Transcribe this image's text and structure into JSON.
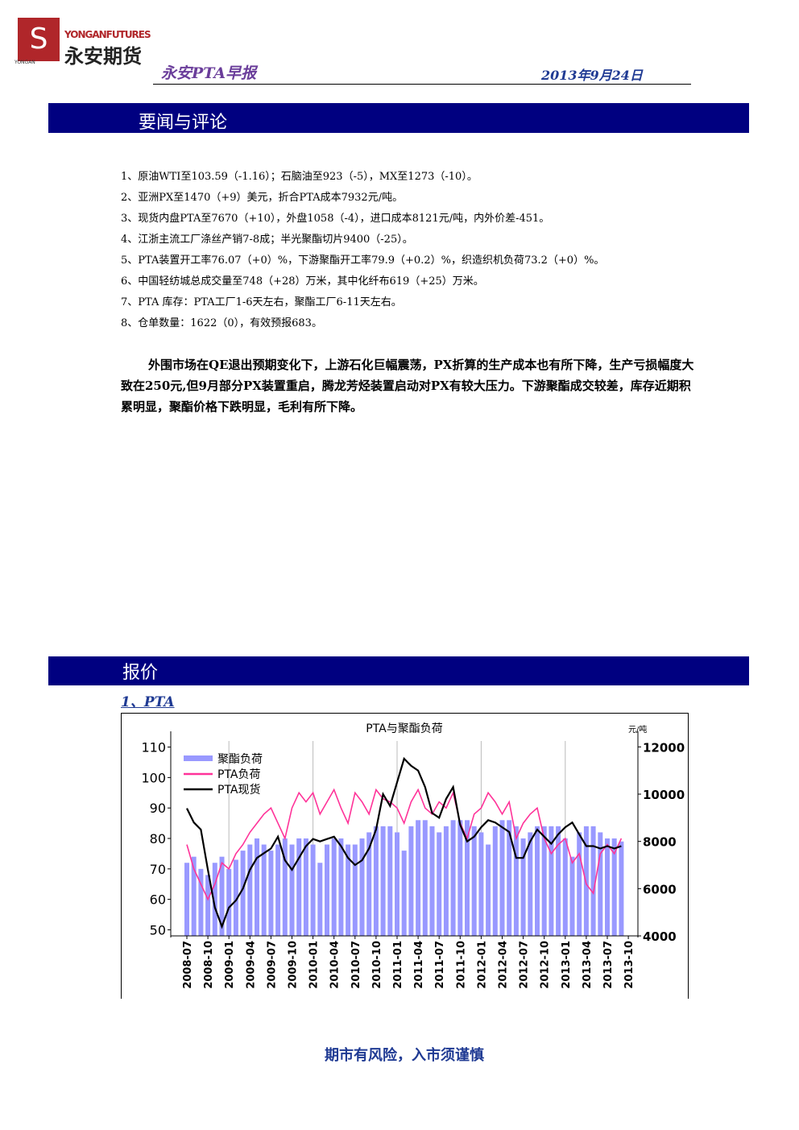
{
  "header": {
    "logo_side": "YONGAN",
    "logo_en": "YONGANFUTURES",
    "logo_cn": "永安期货",
    "report_title": "永安PTA早报",
    "date": "2013年9月24日"
  },
  "sections": [
    {
      "title": "要闻与评论",
      "items": [
        "1、原油WTI至103.59（-1.16）；石脑油至923（-5），MX至1273（-10）。",
        "2、亚洲PX至1470（+9）美元，折合PTA成本7932元/吨。",
        "3、现货内盘PTA至7670（+10），外盘1058（-4），进口成本8121元/吨，内外价差-451。",
        "4、江浙主流工厂涤丝产销7-8成；半光聚酯切片9400（-25）。",
        "5、PTA装置开工率76.07（+0）%，下游聚酯开工率79.9（+0.2）%，织造织机负荷73.2（+0）%。",
        "6、中国轻纺城总成交量至748（+28）万米，其中化纤布619（+25）万米。",
        "7、PTA 库存：PTA工厂1-6天左右，聚酯工厂6-11天左右。",
        "8、仓单数量：1622（0），有效预报683。"
      ],
      "paragraph": "外围市场在QE退出预期变化下，上游石化巨幅震荡，PX折算的生产成本也有所下降，生产亏损幅度大致在250元,但9月部分PX装置重启，腾龙芳烃装置启动对PX有较大压力。下游聚酯成交较差，库存近期积累明显，聚酯价格下跌明显，毛利有所下降。"
    },
    {
      "title": "报价",
      "subtitle": "1、PTA"
    }
  ],
  "chart_data": {
    "type": "combo",
    "title": "PTA与聚酯负荷",
    "y2_label": "元/吨",
    "x": [
      "2008-07",
      "2008-08",
      "2008-09",
      "2008-10",
      "2008-11",
      "2008-12",
      "2009-01",
      "2009-02",
      "2009-03",
      "2009-04",
      "2009-05",
      "2009-06",
      "2009-07",
      "2009-08",
      "2009-09",
      "2009-10",
      "2009-11",
      "2009-12",
      "2010-01",
      "2010-02",
      "2010-03",
      "2010-04",
      "2010-05",
      "2010-06",
      "2010-07",
      "2010-08",
      "2010-09",
      "2010-10",
      "2010-11",
      "2010-12",
      "2011-01",
      "2011-02",
      "2011-03",
      "2011-04",
      "2011-05",
      "2011-06",
      "2011-07",
      "2011-08",
      "2011-09",
      "2011-10",
      "2011-11",
      "2011-12",
      "2012-01",
      "2012-02",
      "2012-03",
      "2012-04",
      "2012-05",
      "2012-06",
      "2012-07",
      "2012-08",
      "2012-09",
      "2012-10",
      "2012-11",
      "2012-12",
      "2013-01",
      "2013-02",
      "2013-03",
      "2013-04",
      "2013-05",
      "2013-06",
      "2013-07",
      "2013-08",
      "2013-09"
    ],
    "xticks": [
      "2008-07",
      "2008-10",
      "2009-01",
      "2009-04",
      "2009-07",
      "2009-10",
      "2010-01",
      "2010-04",
      "2010-07",
      "2010-10",
      "2011-01",
      "2011-04",
      "2011-07",
      "2011-10",
      "2012-01",
      "2012-04",
      "2012-07",
      "2012-10",
      "2013-01",
      "2013-04",
      "2013-07",
      "2013-10"
    ],
    "ylim": [
      48,
      112
    ],
    "yticks": [
      50,
      60,
      70,
      80,
      90,
      100,
      110
    ],
    "y2lim": [
      4000,
      12250
    ],
    "y2ticks": [
      4000,
      6000,
      8000,
      10000,
      12000
    ],
    "series": [
      {
        "name": "聚酯负荷",
        "type": "bar",
        "color": "#9999ff",
        "values": [
          72,
          74,
          70,
          68,
          72,
          74,
          70,
          73,
          76,
          78,
          80,
          78,
          76,
          78,
          80,
          78,
          80,
          80,
          78,
          72,
          78,
          80,
          80,
          78,
          78,
          80,
          82,
          84,
          84,
          84,
          82,
          76,
          84,
          86,
          86,
          84,
          82,
          84,
          86,
          86,
          86,
          84,
          82,
          78,
          84,
          86,
          86,
          84,
          80,
          82,
          84,
          84,
          84,
          84,
          80,
          74,
          82,
          84,
          84,
          82,
          80,
          80,
          79
        ]
      },
      {
        "name": "PTA负荷",
        "type": "line",
        "color": "#ff3399",
        "values": [
          78,
          70,
          65,
          60,
          65,
          72,
          70,
          75,
          78,
          82,
          85,
          88,
          90,
          85,
          80,
          90,
          95,
          92,
          95,
          88,
          92,
          96,
          90,
          85,
          95,
          92,
          88,
          96,
          93,
          92,
          90,
          85,
          92,
          96,
          90,
          88,
          92,
          90,
          95,
          85,
          80,
          88,
          90,
          95,
          92,
          88,
          92,
          80,
          85,
          88,
          90,
          80,
          75,
          78,
          80,
          72,
          75,
          65,
          62,
          75,
          78,
          75,
          80
        ]
      },
      {
        "name": "PTA现货",
        "type": "line",
        "axis": "y2",
        "color": "#000000",
        "values": [
          9400,
          8800,
          8500,
          6800,
          5200,
          4400,
          5200,
          5500,
          6000,
          6800,
          7300,
          7500,
          7700,
          8200,
          7200,
          6800,
          7300,
          7800,
          8100,
          8000,
          8100,
          8200,
          7800,
          7300,
          7000,
          7200,
          7700,
          8500,
          10000,
          9500,
          10500,
          11500,
          11200,
          11000,
          10300,
          9200,
          9000,
          9800,
          10300,
          8700,
          8000,
          8200,
          8600,
          8900,
          8800,
          8600,
          8400,
          7300,
          7300,
          8000,
          8500,
          8200,
          7900,
          8300,
          8600,
          8800,
          8300,
          7800,
          7800,
          7700,
          7800,
          7700,
          7800
        ]
      }
    ]
  },
  "footer": "期市有风险，入市须谨慎"
}
